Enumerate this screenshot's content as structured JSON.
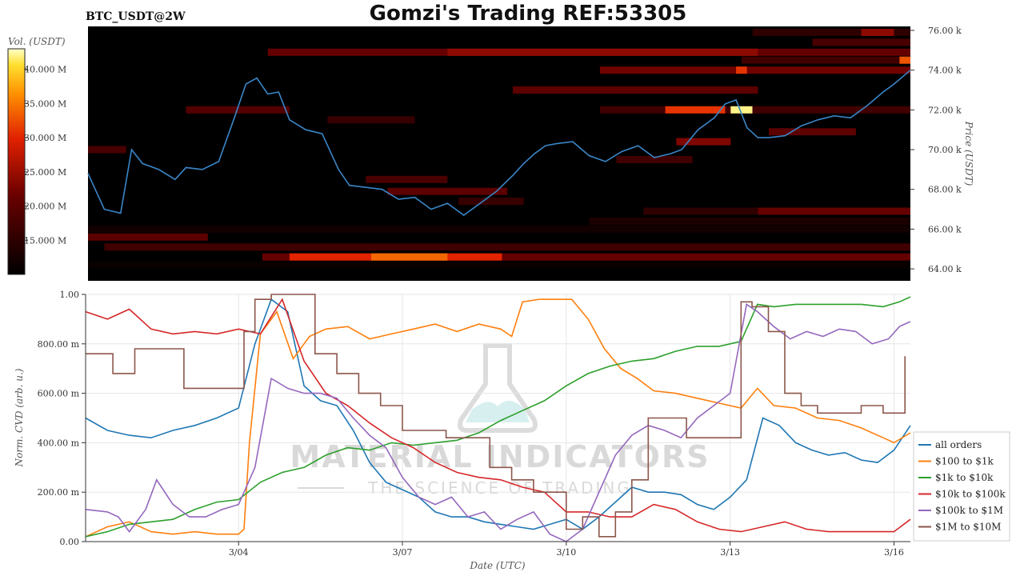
{
  "header": {
    "symbol": "BTC_USDT@2W",
    "title": "Gomzi's Trading REF:53305"
  },
  "watermark": {
    "line1": "MATERIAL INDICATORS",
    "line2": "THE SCIENCE OF TRADING"
  },
  "colors": {
    "heatmap_bg": "#000000",
    "price_line": "#3a86c8",
    "grid": "#e6e6e6"
  },
  "chart_data": [
    {
      "type": "heatmap",
      "title": "BTC_USDT@2W",
      "ylabel": "Price (USDT)",
      "colorbar_label": "Vol. (USDT)",
      "colorbar_ticks": [
        "40.000 M",
        "35.000 M",
        "30.000 M",
        "25.000 M",
        "20.000 M",
        "15.000 M"
      ],
      "colorbar_values": [
        40,
        35,
        30,
        25,
        20,
        15
      ],
      "colorbar_range": [
        10,
        43
      ],
      "y_ticks": [
        "76.00 k",
        "74.00 k",
        "72.00 k",
        "70.00 k",
        "68.00 k",
        "66.00 k",
        "64.00 k"
      ],
      "y_tick_values": [
        76,
        74,
        72,
        70,
        68,
        66,
        64
      ],
      "ylim": [
        63.4,
        76.2
      ],
      "xlim": [
        1.2,
        16.3
      ],
      "price_series": {
        "name": "price",
        "x": [
          1.2,
          1.5,
          1.8,
          2.0,
          2.2,
          2.5,
          2.8,
          3.0,
          3.3,
          3.6,
          3.9,
          4.1,
          4.3,
          4.5,
          4.7,
          4.9,
          5.2,
          5.5,
          5.8,
          6.0,
          6.3,
          6.6,
          6.9,
          7.2,
          7.5,
          7.8,
          8.1,
          8.4,
          8.7,
          9.0,
          9.2,
          9.4,
          9.6,
          9.8,
          10.1,
          10.4,
          10.7,
          11.0,
          11.3,
          11.6,
          11.9,
          12.1,
          12.4,
          12.7,
          12.9,
          13.1,
          13.3,
          13.5,
          13.7,
          14.0,
          14.3,
          14.6,
          14.9,
          15.2,
          15.5,
          15.8,
          16.0,
          16.3
        ],
        "y": [
          68.8,
          67.0,
          66.8,
          70.0,
          69.3,
          69.0,
          68.5,
          69.1,
          69.0,
          69.4,
          71.7,
          73.3,
          73.6,
          72.8,
          72.9,
          71.5,
          71.0,
          70.8,
          69.0,
          68.2,
          68.1,
          68.0,
          67.5,
          67.6,
          67.0,
          67.3,
          66.7,
          67.3,
          67.9,
          68.7,
          69.3,
          69.8,
          70.2,
          70.3,
          70.4,
          69.7,
          69.4,
          69.9,
          70.2,
          69.6,
          69.8,
          70.0,
          71.0,
          71.6,
          72.3,
          72.5,
          71.1,
          70.6,
          70.6,
          70.7,
          71.2,
          71.5,
          71.7,
          71.6,
          72.2,
          72.9,
          73.3,
          74.0
        ]
      },
      "heat_bands": [
        {
          "price": 75.9,
          "x0": 13.4,
          "x1": 16.3,
          "volume": 15
        },
        {
          "price": 75.9,
          "x0": 15.4,
          "x1": 16.0,
          "volume": 24
        },
        {
          "price": 75.4,
          "x0": 14.5,
          "x1": 16.3,
          "volume": 18
        },
        {
          "price": 74.9,
          "x0": 4.5,
          "x1": 16.3,
          "volume": 21
        },
        {
          "price": 74.9,
          "x0": 7.8,
          "x1": 13.5,
          "volume": 24
        },
        {
          "price": 74.5,
          "x0": 13.2,
          "x1": 16.3,
          "volume": 17
        },
        {
          "price": 74.5,
          "x0": 16.1,
          "x1": 16.3,
          "volume": 33
        },
        {
          "price": 74.0,
          "x0": 10.6,
          "x1": 16.3,
          "volume": 22
        },
        {
          "price": 74.0,
          "x0": 13.1,
          "x1": 13.3,
          "volume": 31
        },
        {
          "price": 73.0,
          "x0": 9.0,
          "x1": 13.5,
          "volume": 20
        },
        {
          "price": 72.0,
          "x0": 3.0,
          "x1": 4.9,
          "volume": 19
        },
        {
          "price": 72.0,
          "x0": 10.6,
          "x1": 16.3,
          "volume": 17
        },
        {
          "price": 72.0,
          "x0": 11.8,
          "x1": 12.9,
          "volume": 31
        },
        {
          "price": 72.0,
          "x0": 13.0,
          "x1": 13.4,
          "volume": 42
        },
        {
          "price": 71.5,
          "x0": 5.6,
          "x1": 7.2,
          "volume": 16
        },
        {
          "price": 70.9,
          "x0": 13.7,
          "x1": 15.3,
          "volume": 20
        },
        {
          "price": 70.4,
          "x0": 12.0,
          "x1": 13.0,
          "volume": 23
        },
        {
          "price": 70.0,
          "x0": 1.2,
          "x1": 1.9,
          "volume": 18
        },
        {
          "price": 69.5,
          "x0": 10.9,
          "x1": 12.3,
          "volume": 17
        },
        {
          "price": 68.5,
          "x0": 6.3,
          "x1": 7.8,
          "volume": 18
        },
        {
          "price": 67.9,
          "x0": 6.7,
          "x1": 8.9,
          "volume": 20
        },
        {
          "price": 67.4,
          "x0": 8.0,
          "x1": 9.2,
          "volume": 16
        },
        {
          "price": 66.9,
          "x0": 11.4,
          "x1": 16.3,
          "volume": 15
        },
        {
          "price": 66.9,
          "x0": 13.5,
          "x1": 16.3,
          "volume": 21
        },
        {
          "price": 66.4,
          "x0": 10.4,
          "x1": 16.3,
          "volume": 13
        },
        {
          "price": 66.0,
          "x0": 1.2,
          "x1": 16.3,
          "volume": 12
        },
        {
          "price": 65.6,
          "x0": 1.2,
          "x1": 3.4,
          "volume": 20
        },
        {
          "price": 65.1,
          "x0": 1.5,
          "x1": 16.3,
          "volume": 17
        },
        {
          "price": 64.6,
          "x0": 4.4,
          "x1": 16.3,
          "volume": 21
        },
        {
          "price": 64.6,
          "x0": 4.9,
          "x1": 8.8,
          "volume": 30
        },
        {
          "price": 64.6,
          "x0": 6.4,
          "x1": 7.8,
          "volume": 34
        },
        {
          "price": 64.2,
          "x0": 1.2,
          "x1": 16.3,
          "volume": 11
        }
      ]
    },
    {
      "type": "line",
      "xlabel": "Date (UTC)",
      "ylabel": "Norm. CVD (arb. u.)",
      "x_ticks": [
        "3/04",
        "3/07",
        "3/10",
        "3/13",
        "3/16"
      ],
      "x_tick_values": [
        4,
        7,
        10,
        13,
        16
      ],
      "xlim": [
        1.2,
        16.3
      ],
      "y_ticks": [
        "1.00",
        "800.00 m",
        "600.00 m",
        "400.00 m",
        "200.00 m",
        "0.00"
      ],
      "y_tick_values": [
        1.0,
        0.8,
        0.6,
        0.4,
        0.2,
        0.0
      ],
      "ylim": [
        0,
        1
      ],
      "grid": true,
      "legend_position": "right",
      "series": [
        {
          "name": "all orders",
          "color": "#1f77b4",
          "x": [
            1.2,
            1.6,
            2.0,
            2.4,
            2.8,
            3.2,
            3.6,
            4.0,
            4.3,
            4.6,
            4.9,
            5.2,
            5.5,
            5.8,
            6.1,
            6.4,
            6.7,
            7.0,
            7.3,
            7.6,
            7.9,
            8.2,
            8.5,
            8.8,
            9.1,
            9.4,
            9.7,
            10.0,
            10.3,
            10.6,
            10.9,
            11.2,
            11.5,
            11.8,
            12.1,
            12.4,
            12.7,
            13.0,
            13.3,
            13.6,
            13.9,
            14.2,
            14.5,
            14.8,
            15.1,
            15.4,
            15.7,
            16.0,
            16.3
          ],
          "y": [
            0.5,
            0.45,
            0.43,
            0.42,
            0.45,
            0.47,
            0.5,
            0.54,
            0.8,
            0.98,
            0.93,
            0.63,
            0.57,
            0.55,
            0.45,
            0.32,
            0.24,
            0.21,
            0.18,
            0.12,
            0.1,
            0.1,
            0.08,
            0.07,
            0.06,
            0.05,
            0.07,
            0.09,
            0.05,
            0.1,
            0.16,
            0.22,
            0.2,
            0.2,
            0.19,
            0.15,
            0.13,
            0.18,
            0.25,
            0.5,
            0.47,
            0.4,
            0.37,
            0.35,
            0.36,
            0.33,
            0.32,
            0.37,
            0.47
          ]
        },
        {
          "name": "$100 to $1k",
          "color": "#ff7f0e",
          "x": [
            1.2,
            1.6,
            2.0,
            2.4,
            2.8,
            3.2,
            3.6,
            4.0,
            4.1,
            4.2,
            4.4,
            4.7,
            5.0,
            5.3,
            5.6,
            6.0,
            6.4,
            6.8,
            7.2,
            7.6,
            8.0,
            8.4,
            8.8,
            9.0,
            9.2,
            9.5,
            9.8,
            10.1,
            10.4,
            10.7,
            11.0,
            11.3,
            11.6,
            12.0,
            12.4,
            12.8,
            13.2,
            13.5,
            13.8,
            14.2,
            14.6,
            15.0,
            15.4,
            15.8,
            16.0,
            16.3
          ],
          "y": [
            0.02,
            0.06,
            0.08,
            0.04,
            0.03,
            0.04,
            0.03,
            0.03,
            0.05,
            0.4,
            0.84,
            0.93,
            0.74,
            0.83,
            0.86,
            0.87,
            0.82,
            0.84,
            0.86,
            0.88,
            0.85,
            0.88,
            0.86,
            0.83,
            0.97,
            0.98,
            0.98,
            0.98,
            0.9,
            0.78,
            0.7,
            0.66,
            0.61,
            0.6,
            0.58,
            0.56,
            0.54,
            0.62,
            0.55,
            0.54,
            0.5,
            0.49,
            0.46,
            0.42,
            0.4,
            0.44
          ]
        },
        {
          "name": "$1k to $10k",
          "color": "#2ca02c",
          "x": [
            1.2,
            1.6,
            2.0,
            2.4,
            2.8,
            3.2,
            3.6,
            4.0,
            4.4,
            4.8,
            5.2,
            5.6,
            6.0,
            6.4,
            6.8,
            7.2,
            7.6,
            8.0,
            8.4,
            8.8,
            9.2,
            9.6,
            10.0,
            10.4,
            10.8,
            11.2,
            11.6,
            12.0,
            12.4,
            12.8,
            13.2,
            13.5,
            13.8,
            14.2,
            14.6,
            15.0,
            15.4,
            15.8,
            16.1,
            16.3
          ],
          "y": [
            0.02,
            0.04,
            0.07,
            0.08,
            0.09,
            0.13,
            0.16,
            0.17,
            0.24,
            0.28,
            0.3,
            0.35,
            0.38,
            0.37,
            0.4,
            0.39,
            0.4,
            0.41,
            0.44,
            0.49,
            0.53,
            0.57,
            0.63,
            0.68,
            0.71,
            0.73,
            0.74,
            0.77,
            0.79,
            0.79,
            0.81,
            0.96,
            0.95,
            0.96,
            0.96,
            0.96,
            0.96,
            0.95,
            0.97,
            0.99
          ]
        },
        {
          "name": "$10k to $100k",
          "color": "#d62728",
          "x": [
            1.2,
            1.6,
            2.0,
            2.4,
            2.8,
            3.2,
            3.6,
            4.0,
            4.4,
            4.8,
            5.2,
            5.6,
            6.0,
            6.4,
            6.8,
            7.2,
            7.6,
            8.0,
            8.4,
            8.8,
            9.2,
            9.6,
            10.0,
            10.4,
            10.8,
            11.2,
            11.6,
            12.0,
            12.4,
            12.8,
            13.2,
            13.6,
            14.0,
            14.4,
            14.8,
            15.2,
            15.6,
            16.0,
            16.3
          ],
          "y": [
            0.93,
            0.9,
            0.94,
            0.86,
            0.84,
            0.85,
            0.84,
            0.86,
            0.84,
            0.98,
            0.73,
            0.6,
            0.55,
            0.48,
            0.42,
            0.38,
            0.32,
            0.28,
            0.26,
            0.25,
            0.22,
            0.2,
            0.12,
            0.12,
            0.1,
            0.1,
            0.15,
            0.13,
            0.08,
            0.05,
            0.04,
            0.06,
            0.08,
            0.05,
            0.04,
            0.04,
            0.04,
            0.04,
            0.09
          ]
        },
        {
          "name": "$100k to $1M",
          "color": "#9467bd",
          "x": [
            1.2,
            1.6,
            1.8,
            2.0,
            2.3,
            2.5,
            2.8,
            3.1,
            3.4,
            3.7,
            4.0,
            4.3,
            4.6,
            4.9,
            5.2,
            5.5,
            5.8,
            6.1,
            6.4,
            6.7,
            7.0,
            7.3,
            7.6,
            7.9,
            8.2,
            8.5,
            8.8,
            9.1,
            9.4,
            9.7,
            10.0,
            10.3,
            10.6,
            10.9,
            11.2,
            11.5,
            11.8,
            12.1,
            12.4,
            12.7,
            13.0,
            13.3,
            13.5,
            13.8,
            14.1,
            14.4,
            14.7,
            15.0,
            15.3,
            15.6,
            15.9,
            16.1,
            16.3
          ],
          "y": [
            0.13,
            0.12,
            0.1,
            0.04,
            0.13,
            0.25,
            0.15,
            0.1,
            0.1,
            0.13,
            0.15,
            0.3,
            0.66,
            0.62,
            0.6,
            0.6,
            0.58,
            0.5,
            0.43,
            0.38,
            0.26,
            0.18,
            0.15,
            0.18,
            0.1,
            0.12,
            0.05,
            0.09,
            0.12,
            0.03,
            0.0,
            0.05,
            0.2,
            0.35,
            0.43,
            0.47,
            0.45,
            0.42,
            0.5,
            0.55,
            0.6,
            0.96,
            0.93,
            0.87,
            0.82,
            0.85,
            0.83,
            0.86,
            0.85,
            0.8,
            0.82,
            0.87,
            0.89
          ]
        },
        {
          "name": "$1M to $10M",
          "color": "#8c564b",
          "step": true,
          "x": [
            1.2,
            1.7,
            2.1,
            2.6,
            3.0,
            3.4,
            3.8,
            4.1,
            4.3,
            4.6,
            5.0,
            5.4,
            5.8,
            6.2,
            6.6,
            7.0,
            7.4,
            7.8,
            8.2,
            8.6,
            9.0,
            9.4,
            9.8,
            10.0,
            10.3,
            10.6,
            10.9,
            11.2,
            11.5,
            11.8,
            12.2,
            12.6,
            13.0,
            13.2,
            13.4,
            13.7,
            14.0,
            14.3,
            14.6,
            15.0,
            15.4,
            15.8,
            16.0,
            16.2
          ],
          "y": [
            0.76,
            0.68,
            0.78,
            0.78,
            0.62,
            0.62,
            0.62,
            0.85,
            0.98,
            1.0,
            1.0,
            0.76,
            0.68,
            0.6,
            0.55,
            0.45,
            0.45,
            0.42,
            0.42,
            0.3,
            0.25,
            0.2,
            0.2,
            0.05,
            0.1,
            0.02,
            0.12,
            0.25,
            0.5,
            0.5,
            0.42,
            0.42,
            0.42,
            0.97,
            0.95,
            0.85,
            0.6,
            0.55,
            0.52,
            0.52,
            0.55,
            0.52,
            0.52,
            0.75
          ]
        }
      ]
    }
  ]
}
